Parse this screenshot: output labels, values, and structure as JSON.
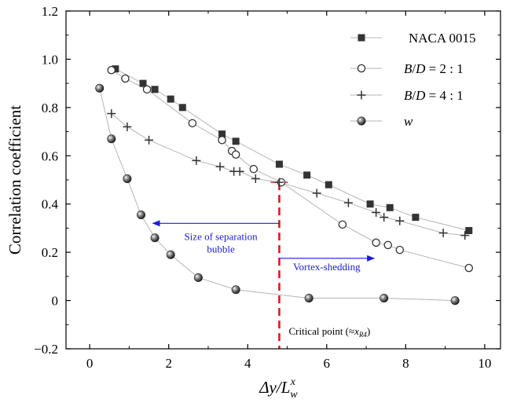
{
  "chart_data": {
    "type": "line",
    "xlabel": "Δy/L",
    "xlabel_sub": "w",
    "xlabel_sup": "x",
    "ylabel": "Correlation coefficient",
    "xlim": [
      -0.6,
      10.4
    ],
    "ylim": [
      -0.2,
      1.2
    ],
    "x_ticks": [
      0,
      2,
      4,
      6,
      8,
      10
    ],
    "y_ticks": [
      -0.2,
      0,
      0.2,
      0.4,
      0.6,
      0.8,
      1.0,
      1.2
    ],
    "x_tick_labels": [
      "0",
      "2",
      "4",
      "6",
      "8",
      "10"
    ],
    "y_tick_labels": [
      "−0.2",
      "0",
      "0.2",
      "0.4",
      "0.6",
      "0.8",
      "1.0",
      "1.2"
    ],
    "grid": false,
    "legend_position": "top-right",
    "series": [
      {
        "name": "NACA 0015",
        "marker": "square-filled",
        "color": "#333333",
        "x": [
          0.65,
          1.35,
          1.65,
          2.05,
          2.35,
          3.35,
          3.7,
          4.8,
          5.5,
          6.05,
          7.1,
          7.6,
          8.25,
          9.6
        ],
        "y": [
          0.96,
          0.9,
          0.875,
          0.835,
          0.8,
          0.69,
          0.66,
          0.565,
          0.52,
          0.48,
          0.4,
          0.385,
          0.345,
          0.29
        ]
      },
      {
        "name": "B/D = 2:1",
        "name_parts": [
          "B",
          "/",
          "D",
          " = 2 : 1"
        ],
        "marker": "circle-open",
        "color": "#333333",
        "x": [
          0.55,
          0.9,
          1.45,
          2.6,
          3.35,
          3.6,
          3.7,
          4.15,
          4.85,
          6.4,
          7.25,
          7.55,
          7.85,
          9.6
        ],
        "y": [
          0.955,
          0.92,
          0.875,
          0.735,
          0.665,
          0.62,
          0.605,
          0.545,
          0.49,
          0.315,
          0.24,
          0.23,
          0.21,
          0.135
        ]
      },
      {
        "name": "B/D = 4:1",
        "name_parts": [
          "B",
          "/",
          "D",
          " = 4 : 1"
        ],
        "marker": "plus",
        "color": "#333333",
        "x": [
          0.55,
          0.95,
          1.5,
          2.7,
          3.3,
          3.65,
          3.8,
          4.2,
          4.8,
          5.75,
          6.55,
          7.25,
          7.45,
          7.85,
          8.95,
          9.5
        ],
        "y": [
          0.775,
          0.72,
          0.665,
          0.58,
          0.555,
          0.535,
          0.535,
          0.505,
          0.49,
          0.445,
          0.405,
          0.365,
          0.345,
          0.33,
          0.28,
          0.27
        ]
      },
      {
        "name": "w",
        "marker": "sphere",
        "color": "#555555",
        "x": [
          0.25,
          0.55,
          0.95,
          1.3,
          1.65,
          2.05,
          2.75,
          3.7,
          5.55,
          7.45,
          9.25
        ],
        "y": [
          0.88,
          0.67,
          0.505,
          0.355,
          0.26,
          0.19,
          0.095,
          0.045,
          0.01,
          0.01,
          0.0
        ]
      }
    ],
    "annotations": {
      "critical_x": 4.8,
      "critical_label": "Critical point (≈",
      "critical_label_var": "x",
      "critical_label_sub": "R4",
      "critical_label_end": ")",
      "separation_label_line1": "Size of separation",
      "separation_label_line2": "bubble",
      "separation_arrow_from": 4.8,
      "separation_arrow_to": 1.6,
      "separation_arrow_y": 0.32,
      "vortex_label": "Vortex-shedding",
      "vortex_arrow_from": 4.8,
      "vortex_arrow_to": 7.2,
      "vortex_arrow_y": 0.175
    }
  },
  "colors": {
    "annotation_blue": "#1a1adc",
    "critical_red": "#e8141b",
    "line_gray": "#b5b5b5",
    "marker_dark": "#333333"
  }
}
